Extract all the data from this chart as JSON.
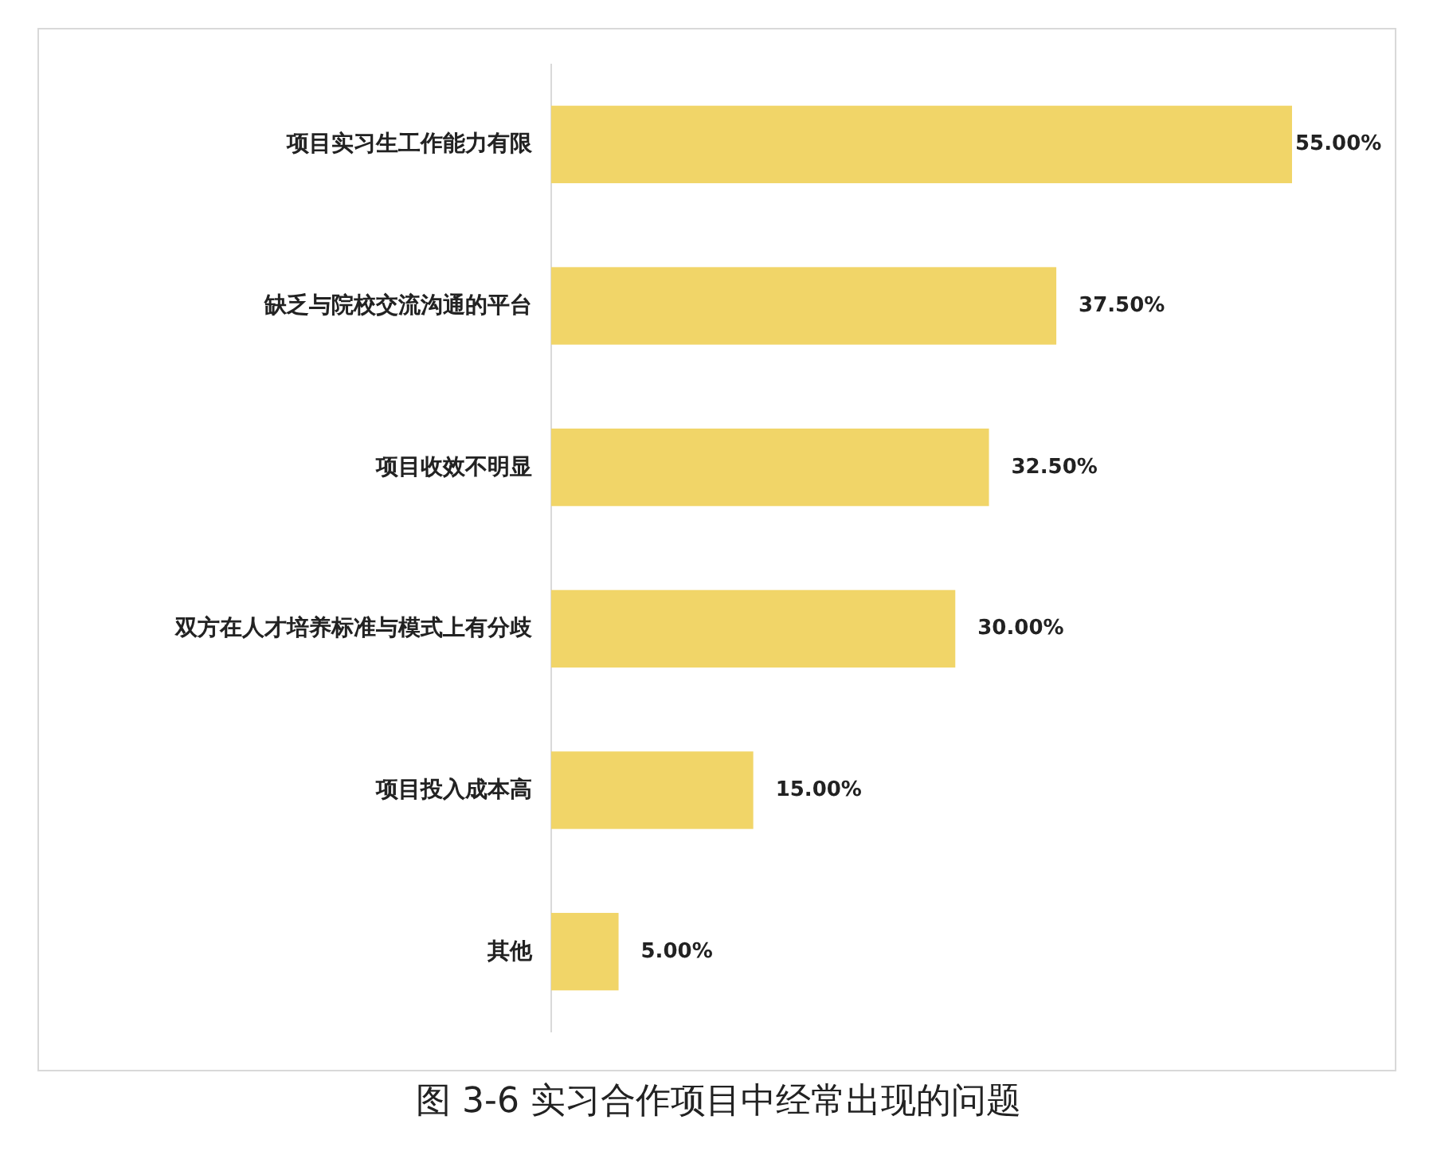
{
  "chart_data": {
    "type": "bar",
    "orientation": "horizontal",
    "categories": [
      "项目实习生工作能力有限",
      "缺乏与院校交流沟通的平台",
      "项目收效不明显",
      "双方在人才培养标准与模式上有分歧",
      "项目投入成本高",
      "其他"
    ],
    "values": [
      55,
      37.5,
      32.5,
      30,
      15,
      5
    ],
    "value_labels": [
      "55.00%",
      "37.50%",
      "32.50%",
      "30.00%",
      "15.00%",
      "5.00%"
    ],
    "color": "#f1d568",
    "annotations": [
      "图 3-6 实习合作项目中经常出现的问题"
    ]
  }
}
